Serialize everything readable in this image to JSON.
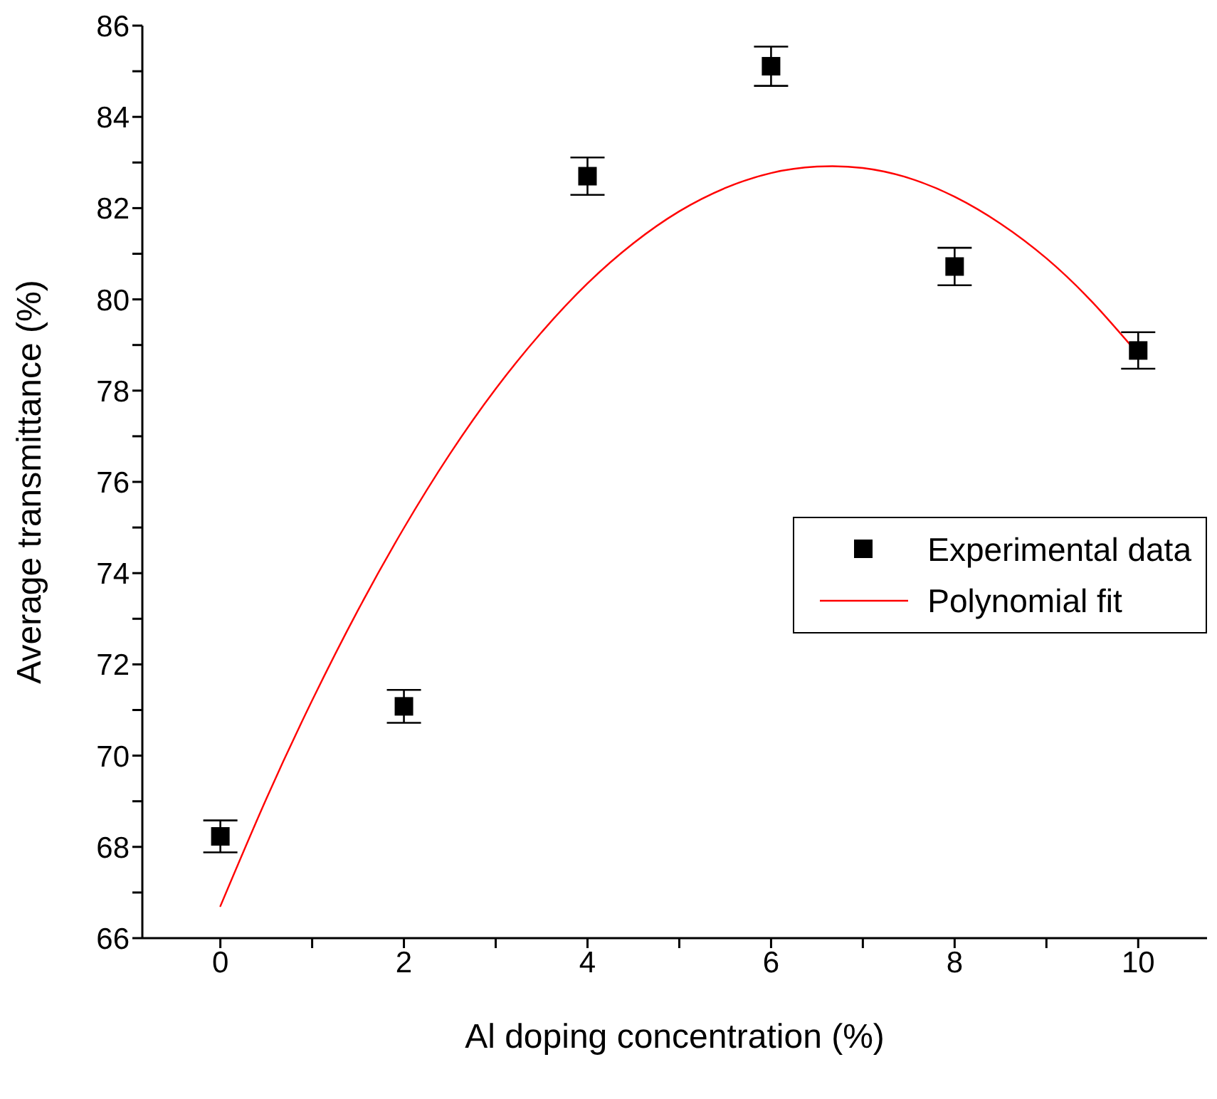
{
  "chart_data": {
    "type": "scatter",
    "xlabel": "Al doping concentration (%)",
    "ylabel": "Average transmittance (%)",
    "xlim": [
      -0.85,
      10.75
    ],
    "ylim": [
      66,
      86
    ],
    "xticks": [
      0,
      {
        "value": 1,
        "label": null
      },
      2,
      {
        "value": 3,
        "label": null
      },
      4,
      {
        "value": 5,
        "label": null
      },
      6,
      {
        "value": 7,
        "label": null
      },
      8,
      {
        "value": 9,
        "label": null
      },
      10
    ],
    "yticks": [
      66,
      {
        "value": 67,
        "label": null
      },
      68,
      {
        "value": 69,
        "label": null
      },
      70,
      {
        "value": 71,
        "label": null
      },
      72,
      {
        "value": 73,
        "label": null
      },
      74,
      {
        "value": 75,
        "label": null
      },
      76,
      {
        "value": 77,
        "label": null
      },
      78,
      {
        "value": 79,
        "label": null
      },
      80,
      {
        "value": 81,
        "label": null
      },
      82,
      {
        "value": 83,
        "label": null
      },
      84,
      {
        "value": 85,
        "label": null
      },
      86
    ],
    "grid": false,
    "legend": "right",
    "series": [
      {
        "name": "Experimental data",
        "color": "#000000",
        "marker": "square",
        "x": [
          0,
          2,
          4,
          6,
          8,
          10
        ],
        "values": [
          68.23,
          71.08,
          82.7,
          85.11,
          80.72,
          78.88
        ],
        "errors": [
          0.35,
          0.36,
          0.41,
          0.43,
          0.41,
          0.4
        ]
      },
      {
        "name": "Polynomial fit",
        "type": "line",
        "color": "#ff0000",
        "marker": "none",
        "line_style": "solid",
        "x": [
          0,
          0.5,
          1,
          1.5,
          2,
          2.5,
          3,
          3.5,
          4,
          4.5,
          5,
          5.5,
          6,
          6.5,
          7,
          7.5,
          8,
          8.5,
          9,
          9.5,
          10
        ],
        "values": [
          66.7,
          69.05,
          71.21,
          73.19,
          74.99,
          76.61,
          78.04,
          79.28,
          80.35,
          81.23,
          81.93,
          82.44,
          82.77,
          82.91,
          82.88,
          82.66,
          82.25,
          81.66,
          80.9,
          79.94,
          78.8
        ]
      }
    ]
  }
}
